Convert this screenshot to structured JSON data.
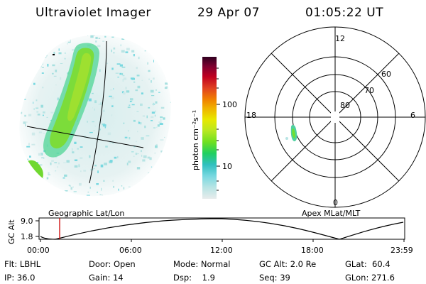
{
  "header": {
    "title": "Ultraviolet Imager",
    "date": "29 Apr 07",
    "time": "01:05:22 UT"
  },
  "colorbar": {
    "label": "photon cm⁻²s⁻¹",
    "ticks": [
      "100",
      "10"
    ],
    "colors": [
      "#e8ecec",
      "#b8e4e4",
      "#78d8e0",
      "#30c0c0",
      "#20d060",
      "#70e020",
      "#b8e820",
      "#e8e800",
      "#f0b000",
      "#f08000",
      "#e04020",
      "#c00020",
      "#800030",
      "#300020"
    ]
  },
  "map_left": {
    "caption": "Geographic Lat/Lon"
  },
  "polar": {
    "caption": "Apex MLat/MLT",
    "mlt_labels": {
      "top": "12",
      "left": "18",
      "right": "6",
      "bottom": "0"
    },
    "lat_labels": [
      "60",
      "70",
      "80"
    ]
  },
  "altitude_plot": {
    "ylabel": "GC Alt",
    "yticks": [
      "9.0",
      "1.8"
    ],
    "xticks": [
      "00:00",
      "06:00",
      "12:00",
      "18:00",
      "23:59"
    ],
    "marker_color": "#cc0000",
    "marker_time": "01:05"
  },
  "footer": {
    "row1": {
      "filter": "Flt: LBHL",
      "door": "Door: Open",
      "mode": "Mode: Normal",
      "gc_alt": "GC Alt: 2.0 Re",
      "glat": "GLat:  60.4"
    },
    "row2": {
      "ip": "IP: 36.0",
      "gain": "Gain: 14",
      "dsp": "Dsp:    1.9",
      "seq": "Seq: 39",
      "glon": "GLon: 271.6"
    }
  }
}
